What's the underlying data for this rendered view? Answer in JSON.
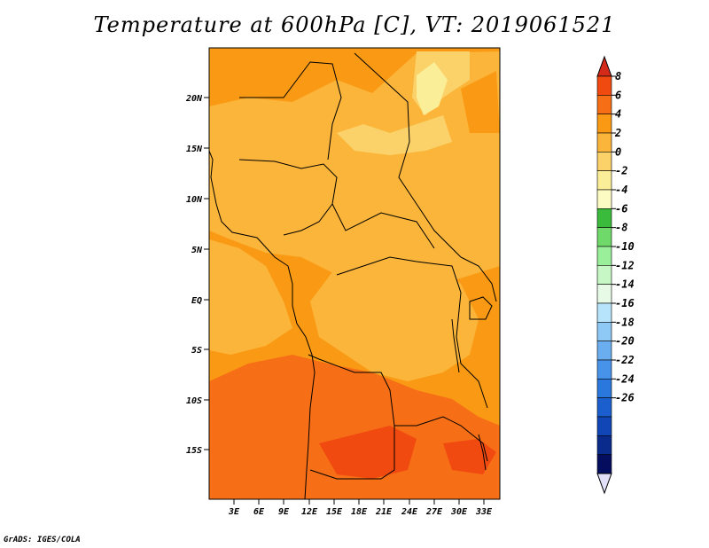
{
  "title": "Temperature at 600hPa [C], VT: 2019061521",
  "footer": "GrADS: IGES/COLA",
  "y_axis_labels": [
    "20N",
    "15N",
    "10N",
    "5N",
    "EQ",
    "5S",
    "10S",
    "15S"
  ],
  "x_axis_labels": [
    "3E",
    "6E",
    "9E",
    "12E",
    "15E",
    "18E",
    "21E",
    "24E",
    "27E",
    "30E",
    "33E"
  ],
  "colorbar": {
    "labels": [
      "8",
      "6",
      "4",
      "2",
      "0",
      "-2",
      "-4",
      "-6",
      "-8",
      "-10",
      "-12",
      "-14",
      "-16",
      "-18",
      "-20",
      "-22",
      "-24",
      "-26"
    ],
    "colors": [
      "#d42a1a",
      "#f04a10",
      "#f66f16",
      "#fa9a14",
      "#fbb53a",
      "#fbd26a",
      "#fbee98",
      "#fdfbc4",
      "#3bbb3b",
      "#6fd96a",
      "#9af09a",
      "#c7f7c4",
      "#e6fae6",
      "#b8e4fb",
      "#8ec9f5",
      "#6aaef0",
      "#4793ea",
      "#2a78dd",
      "#1a5fcd",
      "#1046b5",
      "#0a2b8c",
      "#050e5e",
      "#e0e0f8"
    ]
  },
  "palette": {
    "t_neg2_0": "#fbd26a",
    "t_neg4_neg2": "#fbee98",
    "t_0_2": "#fbb53a",
    "t_2_4": "#fa9a14",
    "t_4_6": "#f66f16",
    "t_6_8": "#f04a10"
  }
}
